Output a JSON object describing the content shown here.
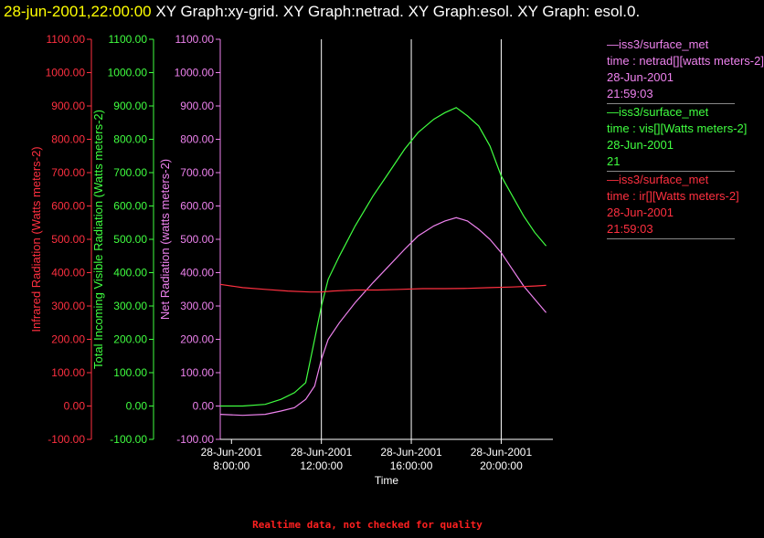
{
  "title": {
    "timestamp": "28-jun-2001,22:00:00",
    "graphs": " XY Graph:xy-grid.  XY Graph:netrad.  XY Graph:esol.  XY Graph: esol.0."
  },
  "legend": [
    {
      "line1": "—iss3/surface_met",
      "line2": "time : netrad[][watts meters-2]",
      "line3": "28-Jun-2001",
      "line4": "21:59:03",
      "color": "#ee82ee"
    },
    {
      "line1": "—iss3/surface_met",
      "line2": "time : vis[][Watts meters-2]",
      "line3": "28-Jun-2001",
      "line4": "21",
      "color": "#40ff40"
    },
    {
      "line1": "—iss3/surface_met",
      "line2": "time : ir[][Watts meters-2]",
      "line3": "28-Jun-2001",
      "line4": "21:59:03",
      "color": "#ff3040"
    }
  ],
  "footer": "Realtime data, not checked for quality",
  "chart_data": {
    "type": "line",
    "xlabel": "Time",
    "xlim": [
      7.5,
      22.3
    ],
    "x_ticks": [
      {
        "value": 8,
        "date": "28-Jun-2001",
        "time": "8:00:00"
      },
      {
        "value": 12,
        "date": "28-Jun-2001",
        "time": "12:00:00"
      },
      {
        "value": 16,
        "date": "28-Jun-2001",
        "time": "16:00:00"
      },
      {
        "value": 20,
        "date": "28-Jun-2001",
        "time": "20:00:00"
      }
    ],
    "vertical_grid_at": [
      12,
      16,
      20
    ],
    "ylim": [
      -100,
      1100
    ],
    "y_ticks": [
      "-100.00",
      "0.00",
      "100.00",
      "200.00",
      "300.00",
      "400.00",
      "500.00",
      "600.00",
      "700.00",
      "800.00",
      "900.00",
      "1000.00",
      "1100.00"
    ],
    "axes": [
      {
        "label": "Infrared Radiation (Watts meters-2)",
        "color": "#ff3040"
      },
      {
        "label": "Total Incoming Visible Radiation (Watts meters-2)",
        "color": "#40ff40"
      },
      {
        "label": "Net Radiation (watts meters-2)",
        "color": "#ee82ee"
      }
    ],
    "series": [
      {
        "name": "vis",
        "color": "#40ff40",
        "x": [
          7.5,
          8.5,
          9.5,
          10.2,
          10.8,
          11.3,
          11.7,
          12.0,
          12.3,
          12.8,
          13.5,
          14.3,
          15.0,
          15.7,
          16.3,
          17.0,
          17.5,
          18.0,
          18.5,
          19.0,
          19.5,
          20.0,
          20.5,
          21.0,
          21.5,
          22.0
        ],
        "y": [
          0,
          0,
          5,
          20,
          40,
          70,
          200,
          300,
          380,
          450,
          540,
          630,
          700,
          770,
          820,
          860,
          880,
          895,
          870,
          840,
          780,
          690,
          630,
          570,
          520,
          480
        ]
      },
      {
        "name": "netrad",
        "color": "#ee82ee",
        "x": [
          7.5,
          8.5,
          9.5,
          10.2,
          10.8,
          11.3,
          11.7,
          12.0,
          12.3,
          12.8,
          13.5,
          14.3,
          15.0,
          15.7,
          16.3,
          17.0,
          17.5,
          18.0,
          18.5,
          19.0,
          19.5,
          20.0,
          20.5,
          21.0,
          21.5,
          22.0
        ],
        "y": [
          -25,
          -28,
          -25,
          -15,
          -5,
          20,
          60,
          140,
          200,
          250,
          310,
          370,
          420,
          470,
          510,
          540,
          555,
          565,
          555,
          530,
          500,
          460,
          410,
          360,
          320,
          280
        ]
      },
      {
        "name": "ir",
        "color": "#ff3040",
        "x": [
          7.5,
          8.5,
          9.5,
          10.5,
          11.5,
          12.0,
          12.5,
          13.5,
          14.5,
          15.5,
          16.5,
          17.5,
          18.5,
          19.5,
          20.5,
          21.5,
          22.0
        ],
        "y": [
          365,
          355,
          350,
          345,
          342,
          342,
          345,
          348,
          348,
          350,
          352,
          352,
          353,
          355,
          357,
          360,
          362
        ]
      }
    ]
  }
}
